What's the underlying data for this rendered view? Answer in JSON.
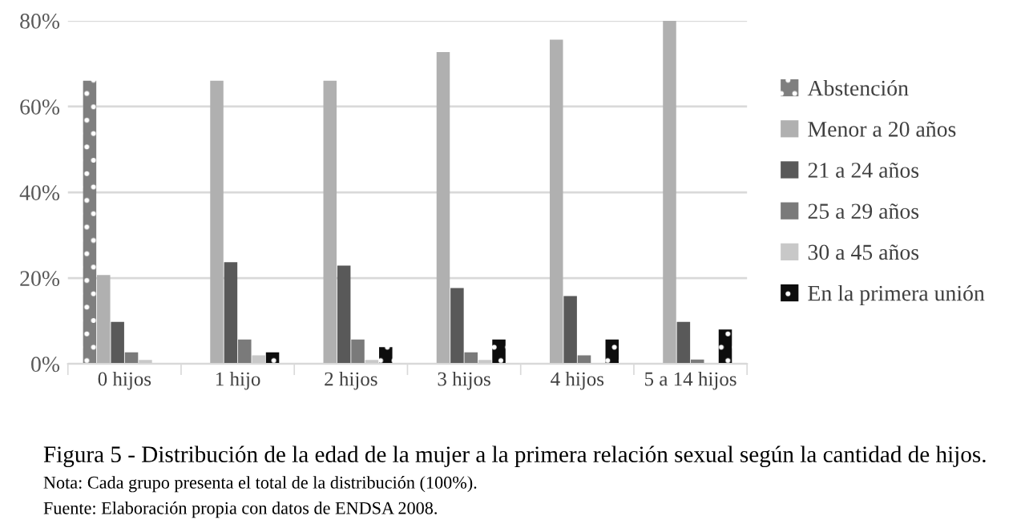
{
  "chart_data": {
    "type": "bar",
    "categories": [
      "0 hijos",
      "1 hijo",
      "2 hijos",
      "3 hijos",
      "4 hijos",
      "5 a 14 hijos"
    ],
    "series": [
      {
        "name": "Abstención",
        "color": "#7f7f7f",
        "values": [
          66,
          null,
          null,
          null,
          null,
          null
        ]
      },
      {
        "name": "Menor a 20 años",
        "color": "#b0b0b0",
        "values": [
          20.7,
          66,
          66,
          72.7,
          75.6,
          80
        ]
      },
      {
        "name": "21 a 24 años",
        "color": "#595959",
        "values": [
          9.8,
          23.7,
          22.9,
          17.7,
          15.8,
          9.8
        ]
      },
      {
        "name": "25 a 29 años",
        "color": "#7a7a7a",
        "values": [
          2.7,
          5.7,
          5.7,
          2.7,
          2,
          1
        ]
      },
      {
        "name": "30 a 45 años",
        "color": "#c8c8c8",
        "values": [
          0.9,
          2,
          0.9,
          0.9,
          null,
          null
        ]
      },
      {
        "name": "En la primera unión",
        "color": "#0d0d0d",
        "values": [
          null,
          2.7,
          3.9,
          5.7,
          5.7,
          8
        ]
      }
    ],
    "ylim": [
      0,
      80
    ],
    "yticks": [
      {
        "value": 0,
        "label": "0%"
      },
      {
        "value": 20,
        "label": "20%"
      },
      {
        "value": 40,
        "label": "40%"
      },
      {
        "value": 60,
        "label": "60%"
      },
      {
        "value": 80,
        "label": "80%"
      }
    ],
    "grid": "y",
    "legend": "right",
    "annotations": [
      "Figura 5 - Distribución de la edad de la mujer a la primera relación sexual según la cantidad de hijos.",
      "Nota: Cada grupo presenta el total de la distribución (100%).",
      "Fuente: Elaboración propia con datos de ENDSA 2008."
    ]
  }
}
